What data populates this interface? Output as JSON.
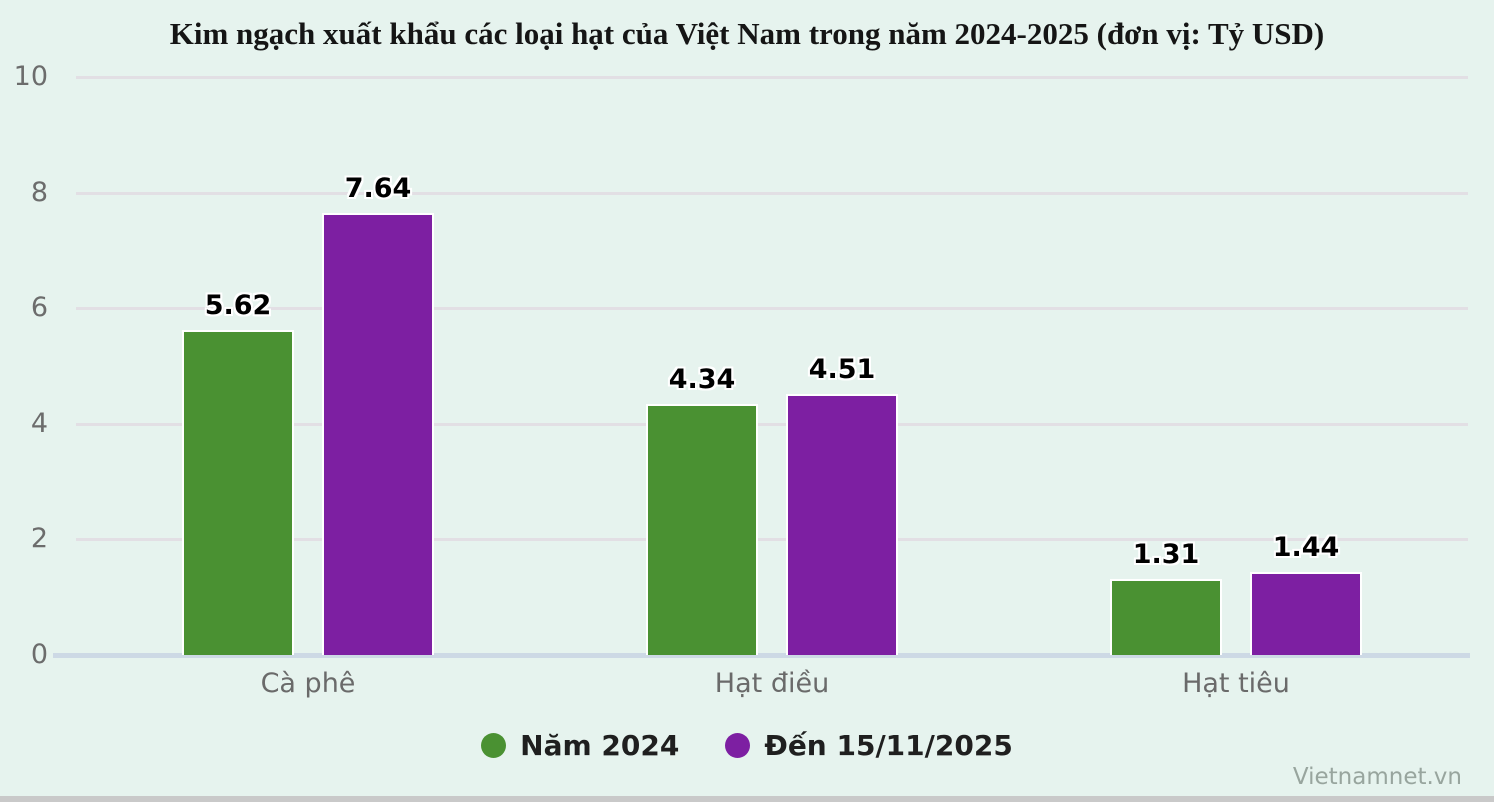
{
  "page": {
    "watermark": "Vietnamnet.vn",
    "background_color": "#e6f3ee",
    "bottom_bar_color": "#c9c9c9"
  },
  "chart_data": {
    "type": "bar",
    "title": "Kim ngạch xuất khẩu các loại hạt của Việt Nam trong năm 2024-2025 (đơn vị: Tỷ USD)",
    "categories": [
      "Cà phê",
      "Hạt điều",
      "Hạt tiêu"
    ],
    "series": [
      {
        "name": "Năm 2024",
        "color": "#4a9132",
        "values": [
          5.62,
          4.34,
          1.31
        ]
      },
      {
        "name": "Đến 15/11/2025",
        "color": "#7d1fa2",
        "values": [
          7.64,
          4.51,
          1.44
        ]
      }
    ],
    "ylim": [
      0,
      10
    ],
    "yticks": [
      0,
      2,
      4,
      6,
      8,
      10
    ],
    "grid": true,
    "legend_position": "bottom",
    "value_labels_shown": true,
    "colors": {
      "grid_line": "#e2dfe4",
      "zero_line": "#cdd9e5",
      "tick_label": "#6c6c6c",
      "category_label": "#6a6a6a",
      "value_label": "#000000",
      "title": "#151515",
      "legend_text": "#1f1f1f",
      "watermark": "#98a59e"
    }
  }
}
